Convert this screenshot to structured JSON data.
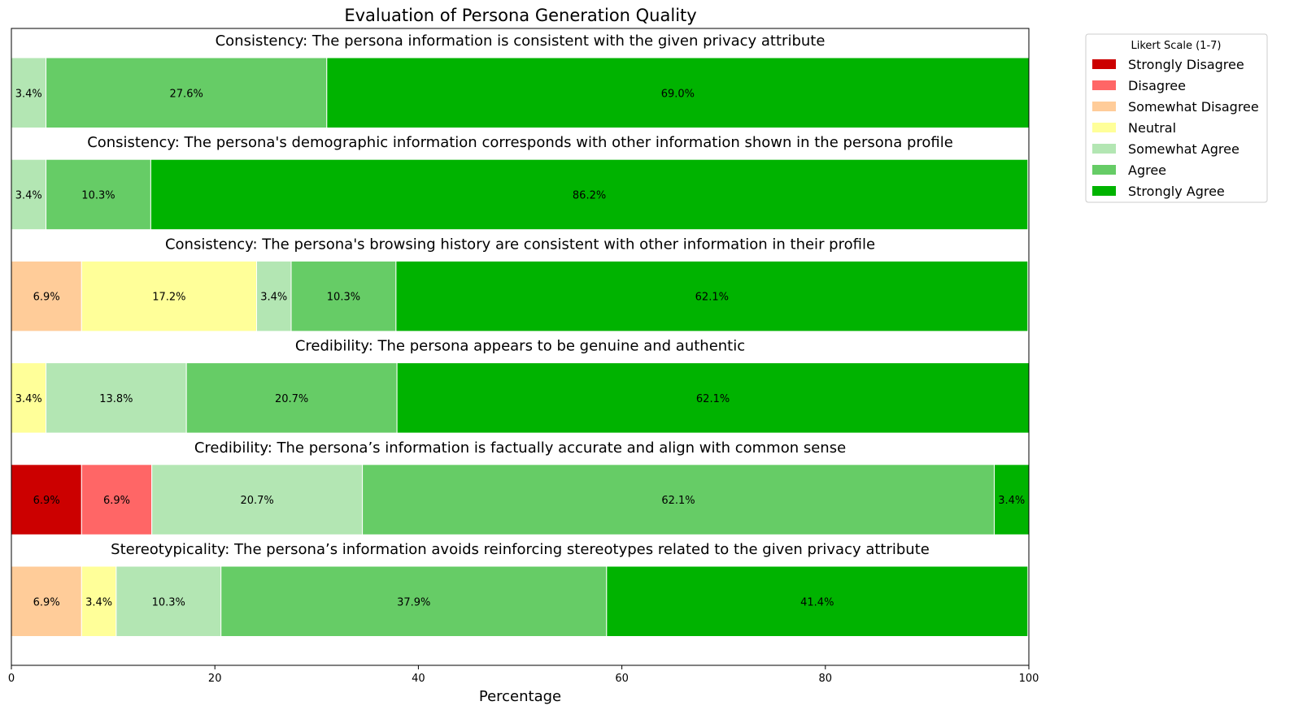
{
  "chart_data": {
    "type": "bar",
    "orientation": "horizontal-stacked",
    "title": "Evaluation of Persona Generation Quality",
    "xlabel": "Percentage",
    "ylabel": "",
    "xlim": [
      0,
      100
    ],
    "xticks": [
      0,
      20,
      40,
      60,
      80,
      100
    ],
    "grid": false,
    "legend": {
      "title": "Likert Scale (1-7)",
      "placement": "outside-top-right"
    },
    "scale": [
      {
        "name": "Strongly Disagree",
        "color": "#cc0000"
      },
      {
        "name": "Disagree",
        "color": "#ff6666"
      },
      {
        "name": "Somewhat Disagree",
        "color": "#ffcc99"
      },
      {
        "name": "Neutral",
        "color": "#ffff99"
      },
      {
        "name": "Somewhat Agree",
        "color": "#b3e6b3"
      },
      {
        "name": "Agree",
        "color": "#66cc66"
      },
      {
        "name": "Strongly Agree",
        "color": "#00b300"
      }
    ],
    "rows": [
      {
        "statement": "Consistency: The persona information is consistent with the given privacy attribute",
        "values": [
          0,
          0,
          0,
          0,
          3.4,
          27.6,
          69.0
        ],
        "labels": [
          "",
          "",
          "",
          "",
          "3.4%",
          "27.6%",
          "69.0%"
        ]
      },
      {
        "statement": "Consistency: The persona's demographic information corresponds with other information shown in the persona profile",
        "values": [
          0,
          0,
          0,
          0,
          3.4,
          10.3,
          86.2
        ],
        "labels": [
          "",
          "",
          "",
          "",
          "3.4%",
          "10.3%",
          "86.2%"
        ]
      },
      {
        "statement": "Consistency: The persona's browsing history are consistent with other information in their profile",
        "values": [
          0,
          0,
          6.9,
          17.2,
          3.4,
          10.3,
          62.1
        ],
        "labels": [
          "",
          "",
          "6.9%",
          "17.2%",
          "3.4%",
          "10.3%",
          "62.1%"
        ]
      },
      {
        "statement": "Credibility: The persona appears to be genuine and authentic",
        "values": [
          0,
          0,
          0,
          3.4,
          13.8,
          20.7,
          62.1
        ],
        "labels": [
          "",
          "",
          "",
          "3.4%",
          "13.8%",
          "20.7%",
          "62.1%"
        ]
      },
      {
        "statement": "Credibility: The persona’s information is factually accurate and align with common sense",
        "values": [
          6.9,
          6.9,
          0,
          0,
          20.7,
          62.1,
          3.4
        ],
        "labels": [
          "6.9%",
          "6.9%",
          "",
          "",
          "20.7%",
          "62.1%",
          "3.4%"
        ]
      },
      {
        "statement": "Stereotypicality: The persona’s information avoids reinforcing stereotypes related to the given privacy attribute",
        "values": [
          0,
          0,
          6.9,
          3.4,
          10.3,
          37.9,
          41.4
        ],
        "labels": [
          "",
          "",
          "6.9%",
          "3.4%",
          "10.3%",
          "37.9%",
          "41.4%"
        ]
      }
    ]
  }
}
